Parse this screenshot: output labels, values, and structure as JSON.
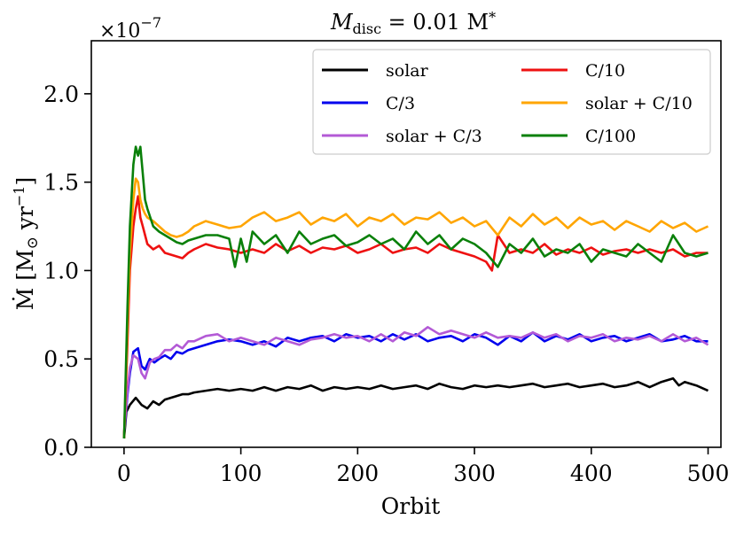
{
  "chart_data": {
    "type": "line",
    "title_main": "M",
    "title_sub": "disc",
    "title_rest": " = 0.01 M",
    "title_star": "*",
    "xlabel": "Orbit",
    "ylabel_main": "Ṁ [M",
    "ylabel_sun": "⊙",
    "ylabel_rest": " yr",
    "ylabel_exp": "−1",
    "ylabel_end": "]",
    "sci_prefix": "×10",
    "sci_exponent": "−7",
    "xlim": [
      -28,
      511
    ],
    "ylim": [
      0,
      2.3
    ],
    "xticks": [
      0,
      100,
      200,
      300,
      400,
      500
    ],
    "xtick_labels": [
      "0",
      "100",
      "200",
      "300",
      "400",
      "500"
    ],
    "yticks": [
      0,
      0.5,
      1.0,
      1.5,
      2.0
    ],
    "ytick_labels": [
      "0.0",
      "0.5",
      "1.0",
      "1.5",
      "2.0"
    ],
    "legend_location": "top-right",
    "series": [
      {
        "name": "solar",
        "color": "#000000",
        "x": [
          0,
          2,
          5,
          10,
          15,
          20,
          25,
          30,
          35,
          40,
          45,
          50,
          55,
          60,
          70,
          80,
          90,
          100,
          110,
          120,
          130,
          140,
          150,
          160,
          170,
          180,
          190,
          200,
          210,
          220,
          230,
          240,
          250,
          260,
          270,
          280,
          290,
          300,
          310,
          320,
          330,
          340,
          350,
          360,
          370,
          380,
          390,
          400,
          410,
          420,
          430,
          440,
          450,
          460,
          465,
          470,
          475,
          480,
          490,
          500
        ],
        "y": [
          0.05,
          0.2,
          0.24,
          0.28,
          0.24,
          0.22,
          0.26,
          0.24,
          0.27,
          0.28,
          0.29,
          0.3,
          0.3,
          0.31,
          0.32,
          0.33,
          0.32,
          0.33,
          0.32,
          0.34,
          0.32,
          0.34,
          0.33,
          0.35,
          0.32,
          0.34,
          0.33,
          0.34,
          0.33,
          0.35,
          0.33,
          0.34,
          0.35,
          0.33,
          0.36,
          0.34,
          0.33,
          0.35,
          0.34,
          0.35,
          0.34,
          0.35,
          0.36,
          0.34,
          0.35,
          0.36,
          0.34,
          0.35,
          0.36,
          0.34,
          0.35,
          0.37,
          0.34,
          0.37,
          0.38,
          0.39,
          0.35,
          0.37,
          0.35,
          0.32
        ]
      },
      {
        "name": "C/3",
        "color": "#0000ee",
        "x": [
          0,
          3,
          5,
          8,
          12,
          15,
          18,
          22,
          26,
          30,
          35,
          40,
          45,
          50,
          55,
          60,
          70,
          80,
          90,
          100,
          110,
          120,
          130,
          140,
          150,
          160,
          170,
          180,
          190,
          200,
          210,
          220,
          230,
          240,
          250,
          260,
          270,
          280,
          290,
          300,
          310,
          320,
          330,
          340,
          350,
          360,
          370,
          380,
          390,
          400,
          410,
          420,
          430,
          440,
          450,
          460,
          470,
          480,
          490,
          500
        ],
        "y": [
          0.07,
          0.3,
          0.42,
          0.54,
          0.56,
          0.46,
          0.44,
          0.5,
          0.48,
          0.5,
          0.52,
          0.5,
          0.54,
          0.53,
          0.55,
          0.56,
          0.58,
          0.6,
          0.61,
          0.6,
          0.58,
          0.6,
          0.57,
          0.62,
          0.6,
          0.62,
          0.63,
          0.6,
          0.64,
          0.62,
          0.63,
          0.6,
          0.64,
          0.61,
          0.64,
          0.6,
          0.62,
          0.63,
          0.6,
          0.64,
          0.62,
          0.58,
          0.63,
          0.6,
          0.65,
          0.6,
          0.63,
          0.61,
          0.64,
          0.6,
          0.62,
          0.63,
          0.6,
          0.62,
          0.64,
          0.6,
          0.61,
          0.63,
          0.6,
          0.6
        ]
      },
      {
        "name": "solar + C/3",
        "color": "#b35ad6",
        "x": [
          0,
          3,
          5,
          8,
          12,
          15,
          18,
          22,
          26,
          30,
          35,
          40,
          45,
          50,
          55,
          60,
          70,
          80,
          90,
          100,
          110,
          120,
          130,
          140,
          150,
          160,
          170,
          180,
          190,
          200,
          210,
          220,
          230,
          240,
          250,
          260,
          270,
          280,
          290,
          300,
          310,
          320,
          330,
          340,
          350,
          360,
          370,
          380,
          390,
          400,
          410,
          420,
          430,
          440,
          450,
          460,
          470,
          480,
          490,
          500
        ],
        "y": [
          0.08,
          0.32,
          0.45,
          0.52,
          0.5,
          0.42,
          0.39,
          0.48,
          0.5,
          0.51,
          0.55,
          0.55,
          0.58,
          0.56,
          0.6,
          0.6,
          0.63,
          0.64,
          0.6,
          0.62,
          0.6,
          0.58,
          0.62,
          0.6,
          0.58,
          0.61,
          0.62,
          0.64,
          0.62,
          0.63,
          0.6,
          0.64,
          0.6,
          0.65,
          0.63,
          0.68,
          0.64,
          0.66,
          0.64,
          0.62,
          0.65,
          0.62,
          0.63,
          0.62,
          0.65,
          0.62,
          0.64,
          0.6,
          0.63,
          0.62,
          0.64,
          0.6,
          0.62,
          0.61,
          0.63,
          0.6,
          0.64,
          0.6,
          0.62,
          0.58
        ]
      },
      {
        "name": "C/10",
        "color": "#ee1111",
        "x": [
          0,
          3,
          5,
          8,
          10,
          12,
          14,
          16,
          18,
          20,
          25,
          30,
          35,
          40,
          45,
          50,
          55,
          60,
          70,
          80,
          90,
          100,
          110,
          120,
          130,
          140,
          150,
          160,
          170,
          180,
          190,
          200,
          210,
          220,
          230,
          240,
          250,
          260,
          270,
          280,
          290,
          300,
          310,
          315,
          320,
          330,
          340,
          350,
          360,
          370,
          380,
          390,
          400,
          410,
          420,
          430,
          440,
          450,
          460,
          470,
          480,
          490,
          500
        ],
        "y": [
          0.05,
          0.6,
          1.0,
          1.25,
          1.35,
          1.42,
          1.3,
          1.25,
          1.2,
          1.15,
          1.12,
          1.14,
          1.1,
          1.09,
          1.08,
          1.07,
          1.1,
          1.12,
          1.15,
          1.13,
          1.12,
          1.1,
          1.12,
          1.1,
          1.15,
          1.11,
          1.14,
          1.1,
          1.13,
          1.12,
          1.14,
          1.1,
          1.12,
          1.15,
          1.1,
          1.12,
          1.13,
          1.1,
          1.15,
          1.12,
          1.1,
          1.08,
          1.05,
          1.0,
          1.2,
          1.1,
          1.12,
          1.1,
          1.15,
          1.09,
          1.12,
          1.1,
          1.13,
          1.09,
          1.11,
          1.12,
          1.1,
          1.12,
          1.1,
          1.12,
          1.08,
          1.1,
          1.1
        ]
      },
      {
        "name": "solar + C/10",
        "color": "#ffa500",
        "x": [
          0,
          3,
          5,
          8,
          10,
          12,
          14,
          16,
          18,
          20,
          25,
          30,
          35,
          40,
          45,
          50,
          55,
          60,
          70,
          80,
          90,
          100,
          110,
          120,
          130,
          140,
          150,
          160,
          170,
          180,
          190,
          200,
          210,
          220,
          230,
          240,
          250,
          260,
          270,
          280,
          290,
          300,
          310,
          320,
          330,
          340,
          350,
          360,
          370,
          380,
          390,
          400,
          410,
          420,
          430,
          440,
          450,
          460,
          470,
          480,
          490,
          500
        ],
        "y": [
          0.05,
          0.7,
          1.1,
          1.4,
          1.52,
          1.5,
          1.4,
          1.35,
          1.32,
          1.3,
          1.28,
          1.25,
          1.22,
          1.2,
          1.19,
          1.2,
          1.22,
          1.25,
          1.28,
          1.26,
          1.24,
          1.25,
          1.3,
          1.33,
          1.28,
          1.3,
          1.33,
          1.26,
          1.3,
          1.28,
          1.32,
          1.25,
          1.3,
          1.28,
          1.32,
          1.26,
          1.3,
          1.29,
          1.33,
          1.27,
          1.3,
          1.25,
          1.28,
          1.2,
          1.3,
          1.25,
          1.32,
          1.26,
          1.3,
          1.24,
          1.3,
          1.26,
          1.28,
          1.23,
          1.28,
          1.25,
          1.22,
          1.28,
          1.24,
          1.27,
          1.22,
          1.25
        ]
      },
      {
        "name": "C/100",
        "color": "#0a800a",
        "x": [
          0,
          3,
          5,
          8,
          10,
          12,
          14,
          16,
          18,
          20,
          25,
          30,
          35,
          40,
          45,
          50,
          55,
          60,
          70,
          80,
          90,
          95,
          100,
          105,
          110,
          120,
          130,
          140,
          150,
          160,
          170,
          180,
          190,
          200,
          210,
          220,
          230,
          240,
          250,
          260,
          270,
          280,
          290,
          300,
          310,
          320,
          330,
          340,
          350,
          360,
          370,
          380,
          390,
          400,
          410,
          420,
          430,
          440,
          450,
          460,
          470,
          480,
          490,
          500
        ],
        "y": [
          0.05,
          0.8,
          1.25,
          1.6,
          1.7,
          1.65,
          1.7,
          1.55,
          1.4,
          1.35,
          1.25,
          1.22,
          1.2,
          1.18,
          1.16,
          1.15,
          1.17,
          1.18,
          1.2,
          1.2,
          1.18,
          1.02,
          1.18,
          1.05,
          1.22,
          1.15,
          1.2,
          1.1,
          1.22,
          1.15,
          1.18,
          1.2,
          1.14,
          1.16,
          1.2,
          1.15,
          1.18,
          1.12,
          1.22,
          1.15,
          1.2,
          1.12,
          1.18,
          1.15,
          1.1,
          1.02,
          1.15,
          1.1,
          1.18,
          1.08,
          1.12,
          1.1,
          1.15,
          1.05,
          1.12,
          1.1,
          1.08,
          1.15,
          1.1,
          1.05,
          1.2,
          1.1,
          1.08,
          1.1
        ]
      }
    ]
  }
}
